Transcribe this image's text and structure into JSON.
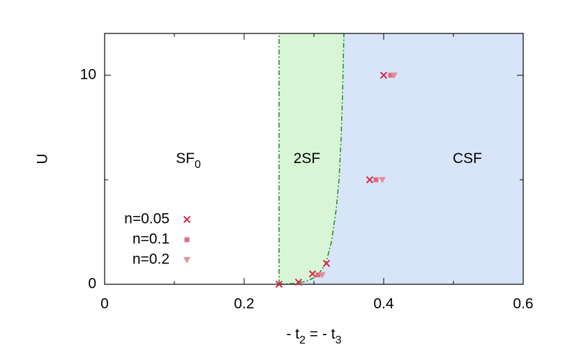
{
  "chart_data": {
    "type": "phase-diagram",
    "xlabel": [
      {
        "text": "- t"
      },
      {
        "text": "2",
        "sub": true
      },
      {
        "text": " = - t"
      },
      {
        "text": "3",
        "sub": true
      }
    ],
    "ylabel": "U",
    "xlim": [
      0,
      0.6
    ],
    "ylim": [
      0,
      12
    ],
    "xticks": [
      0,
      0.2,
      0.4,
      0.6
    ],
    "yticks": [
      0,
      10
    ],
    "xminorticks": [
      0.1,
      0.3,
      0.5
    ],
    "yminorticks": [
      5
    ],
    "regions": [
      {
        "parts": [
          {
            "text": "SF"
          },
          {
            "text": "0",
            "sub": true
          }
        ],
        "color": "#ffffff"
      },
      {
        "parts": [
          {
            "text": "2SF"
          }
        ],
        "color": "#d8f5d6"
      },
      {
        "parts": [
          {
            "text": "CSF"
          }
        ],
        "color": "#d8e5f8"
      }
    ],
    "boundary_color": "#1e8a1e",
    "boundaries": [
      {
        "x": [
          0.25,
          0.25
        ],
        "y": [
          0,
          12
        ]
      },
      {
        "x": [
          0.25,
          0.27,
          0.29,
          0.305,
          0.317,
          0.325,
          0.332,
          0.336,
          0.339,
          0.341,
          0.343
        ],
        "y": [
          0,
          0.03,
          0.15,
          0.4,
          1,
          2,
          3.6,
          5,
          7,
          9,
          12
        ]
      }
    ],
    "legend": "lower left",
    "series": [
      {
        "name": "n=0.05",
        "marker": "cross",
        "color": "#d42a4e",
        "x": [
          0.25,
          0.278,
          0.298,
          0.318,
          0.38,
          0.4
        ],
        "values": [
          0,
          0.1,
          0.5,
          1,
          5,
          10
        ]
      },
      {
        "name": "n=0.1",
        "marker": "square",
        "color": "#e06a80",
        "x": [
          0.306,
          0.389,
          0.41
        ],
        "values": [
          0.45,
          5,
          10
        ]
      },
      {
        "name": "n=0.2",
        "marker": "triangle",
        "color": "#e4909c",
        "x": [
          0.312,
          0.398,
          0.415
        ],
        "values": [
          0.45,
          5,
          10
        ]
      }
    ]
  }
}
